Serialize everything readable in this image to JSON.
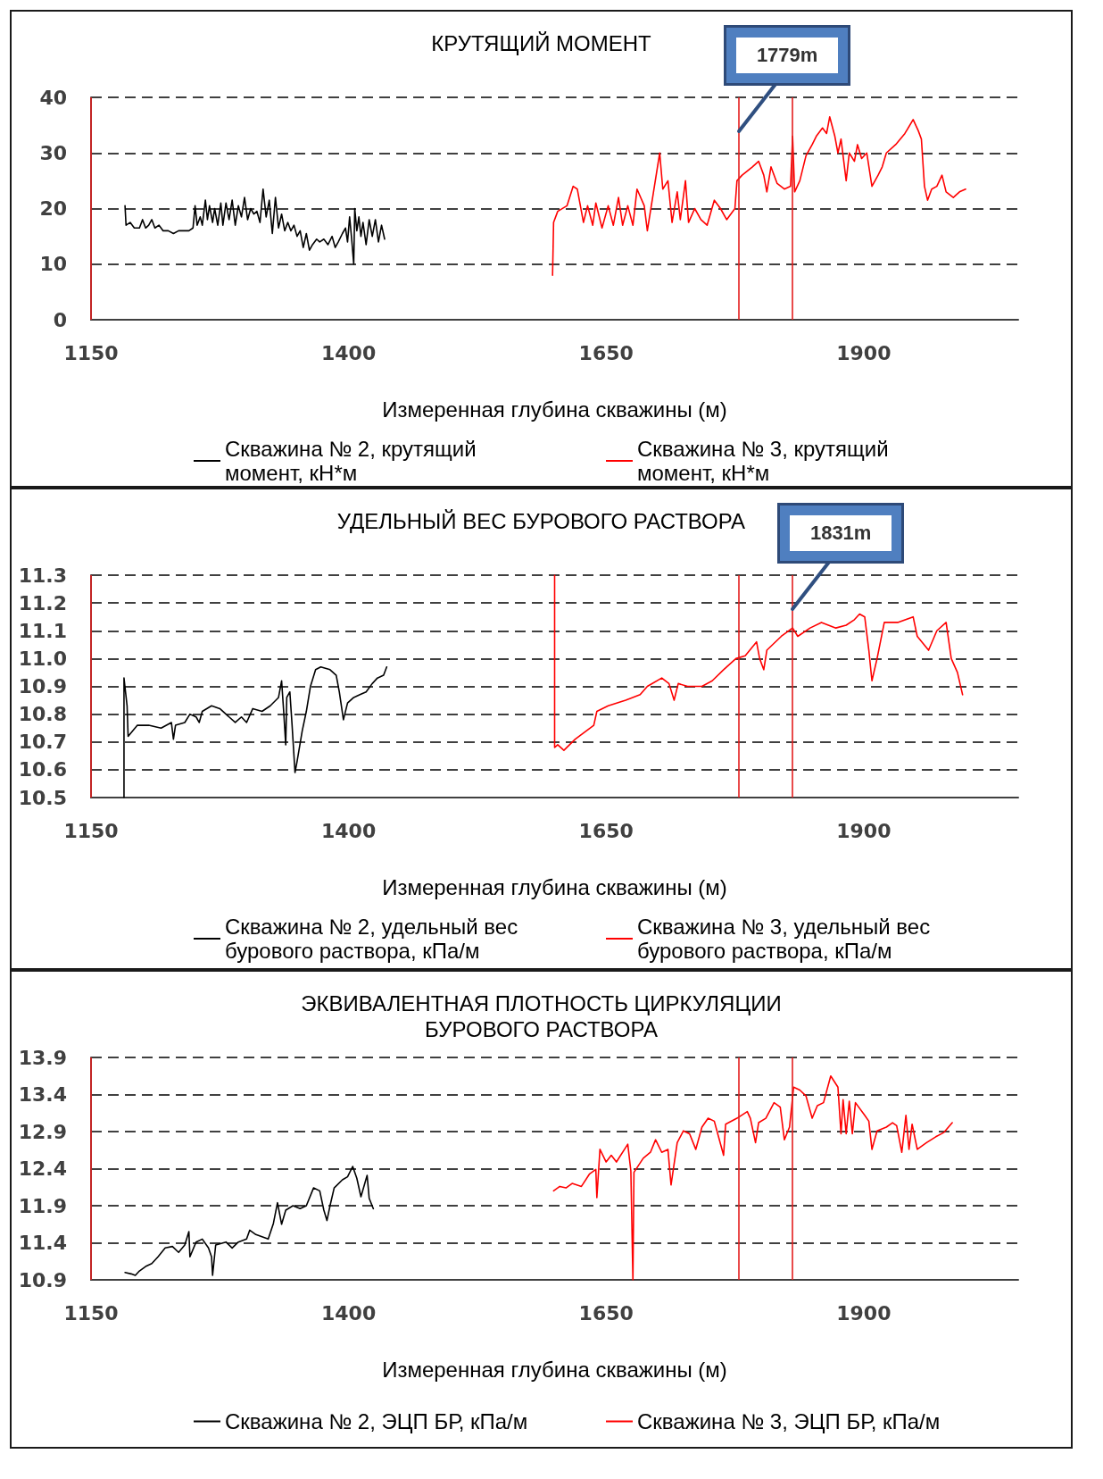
{
  "chart_data": [
    {
      "type": "line",
      "title": "КРУТЯЩИЙ МОМЕНТ",
      "xlabel": "Измеренная глубина скважины (м)",
      "xlim": [
        1150,
        2050
      ],
      "xticks": [
        1150,
        1400,
        1650,
        1900
      ],
      "ylim": [
        0,
        40
      ],
      "yticks": [
        0,
        10,
        20,
        30,
        40
      ],
      "grid": "y",
      "legend": "bottom",
      "marker": "none",
      "series": [
        {
          "name": "Скважина № 2, крутящий момент, кН*м",
          "color": "#000000",
          "x": [
            1183,
            1184,
            1188,
            1192,
            1197,
            1200,
            1203,
            1206,
            1209,
            1212,
            1216,
            1220,
            1225,
            1230,
            1235,
            1240,
            1245,
            1249,
            1251,
            1253,
            1256,
            1258,
            1261,
            1263,
            1265,
            1268,
            1270,
            1273,
            1276,
            1278,
            1281,
            1284,
            1287,
            1290,
            1293,
            1296,
            1299,
            1302,
            1305,
            1308,
            1311,
            1314,
            1317,
            1320,
            1323,
            1326,
            1329,
            1332,
            1335,
            1338,
            1341,
            1344,
            1347,
            1350,
            1353,
            1356,
            1359,
            1362,
            1365,
            1369,
            1372,
            1376,
            1380,
            1384,
            1387,
            1390,
            1394,
            1397,
            1399,
            1401,
            1403,
            1405,
            1406,
            1408,
            1410,
            1412,
            1414,
            1417,
            1420,
            1423,
            1426,
            1429,
            1432,
            1435
          ],
          "values": [
            20.5,
            17,
            17.5,
            16.5,
            16.5,
            18,
            16.5,
            17,
            18,
            16.5,
            17,
            16,
            16,
            15.5,
            16,
            16,
            16,
            16.5,
            20.5,
            17,
            18.5,
            17,
            21.5,
            18,
            20.5,
            17.5,
            20,
            17,
            21,
            17,
            21,
            18,
            21.5,
            17,
            20.5,
            18.5,
            22,
            18,
            20,
            19,
            19.5,
            17.5,
            23.5,
            18.5,
            21.5,
            15.5,
            22,
            16.5,
            19,
            16,
            17.5,
            16,
            17,
            15,
            16,
            13,
            15.5,
            12.5,
            13.5,
            14.5,
            14,
            14.5,
            13.5,
            15,
            13,
            14,
            15.5,
            16.5,
            14,
            18.5,
            14.5,
            10,
            20,
            16,
            18.5,
            15,
            17.5,
            13.5,
            18,
            15,
            18,
            14,
            17,
            14.5
          ]
        },
        {
          "name": "Скважина № 3, крутящий момент, кН*м",
          "color": "#ff0000",
          "x": [
            1598,
            1599,
            1603,
            1612,
            1618,
            1622,
            1628,
            1632,
            1637,
            1640,
            1646,
            1652,
            1657,
            1662,
            1666,
            1671,
            1676,
            1680,
            1687,
            1690,
            1696,
            1702,
            1705,
            1710,
            1714,
            1719,
            1722,
            1727,
            1730,
            1736,
            1742,
            1748,
            1755,
            1761,
            1767,
            1775,
            1777,
            1782,
            1792,
            1798,
            1803,
            1806,
            1810,
            1816,
            1823,
            1829,
            1831,
            1833,
            1838,
            1844,
            1850,
            1854,
            1860,
            1864,
            1867,
            1872,
            1875,
            1878,
            1883,
            1886,
            1891,
            1894,
            1898,
            1903,
            1908,
            1914,
            1918,
            1922,
            1931,
            1940,
            1948,
            1953,
            1956,
            1959,
            1962,
            1966,
            1971,
            1976,
            1980,
            1987,
            1993,
            1999
          ],
          "values": [
            8,
            17.5,
            19.5,
            20.5,
            24,
            23.5,
            17.5,
            20.5,
            17,
            21,
            16.5,
            20.5,
            17,
            22,
            17,
            20.5,
            17,
            23.5,
            20.5,
            16,
            23,
            30,
            23.5,
            25,
            17.5,
            23,
            18,
            25,
            17.5,
            20,
            18,
            17,
            21.5,
            20,
            18,
            20,
            25,
            26,
            27.5,
            28.5,
            26,
            23,
            27.5,
            24.5,
            23.5,
            24,
            33,
            23,
            25,
            29.5,
            31.5,
            33,
            34.5,
            33.5,
            36.5,
            33,
            30,
            32.5,
            25,
            30,
            28.5,
            31.5,
            29,
            30,
            24,
            26,
            27.5,
            30,
            31.5,
            33.5,
            36,
            34,
            32.5,
            24,
            21.5,
            23.5,
            24,
            26,
            23,
            22,
            23,
            23.5
          ]
        }
      ],
      "ref_lines": [
        {
          "axis": "x",
          "value": 1150,
          "color": "#e41e1e"
        },
        {
          "axis": "x",
          "value": 1779,
          "label": "1779m",
          "color": "#e41e1e"
        },
        {
          "axis": "x",
          "value": 1831,
          "color": "#e41e1e"
        }
      ]
    },
    {
      "type": "line",
      "title": "УДЕЛЬНЫЙ ВЕС БУРОВОГО РАСТВОРА",
      "xlabel": "Измеренная глубина скважины (м)",
      "xlim": [
        1150,
        2050
      ],
      "xticks": [
        1150,
        1400,
        1650,
        1900
      ],
      "ylim": [
        10.5,
        11.3
      ],
      "yticks": [
        10.5,
        10.6,
        10.7,
        10.8,
        10.9,
        {
          "value": 11,
          "label": "11.0"
        },
        11.1,
        11.2,
        11.3
      ],
      "grid": "y",
      "legend": "bottom",
      "marker": "none",
      "series": [
        {
          "name": "Скважина № 2, удельный вес бурового раствора, кПа/м",
          "color": "#000000",
          "x": [
            1182,
            1182,
            1185,
            1186,
            1195,
            1206,
            1218,
            1228,
            1230,
            1232,
            1241,
            1246,
            1252,
            1255,
            1258,
            1267,
            1275,
            1284,
            1290,
            1296,
            1301,
            1307,
            1316,
            1324,
            1332,
            1335,
            1337,
            1339,
            1340,
            1343,
            1345,
            1348,
            1350,
            1355,
            1359,
            1363,
            1368,
            1373,
            1382,
            1388,
            1391,
            1395,
            1399,
            1405,
            1411,
            1417,
            1423,
            1428,
            1434,
            1437
          ],
          "values": [
            10.5,
            10.93,
            10.83,
            10.72,
            10.76,
            10.76,
            10.75,
            10.77,
            10.71,
            10.76,
            10.77,
            10.8,
            10.79,
            10.77,
            10.81,
            10.83,
            10.82,
            10.79,
            10.77,
            10.79,
            10.77,
            10.82,
            10.81,
            10.83,
            10.86,
            10.92,
            10.81,
            10.69,
            10.86,
            10.88,
            10.77,
            10.59,
            10.63,
            10.74,
            10.81,
            10.9,
            10.96,
            10.97,
            10.96,
            10.94,
            10.88,
            10.78,
            10.84,
            10.86,
            10.87,
            10.88,
            10.91,
            10.93,
            10.94,
            10.97
          ]
        },
        {
          "name": "Скважина № 3, удельный вес бурового раствора, кПа/м",
          "color": "#ff0000",
          "x": [
            1600,
            1600,
            1603,
            1609,
            1620,
            1638,
            1641,
            1652,
            1669,
            1683,
            1690,
            1704,
            1711,
            1716,
            1720,
            1729,
            1743,
            1753,
            1764,
            1776,
            1785,
            1796,
            1799,
            1803,
            1806,
            1820,
            1831,
            1836,
            1848,
            1859,
            1873,
            1883,
            1891,
            1896,
            1901,
            1905,
            1908,
            1913,
            1920,
            1933,
            1948,
            1952,
            1963,
            1971,
            1980,
            1985,
            1991,
            1996
          ],
          "values": [
            11.3,
            10.68,
            10.69,
            10.67,
            10.71,
            10.76,
            10.81,
            10.83,
            10.85,
            10.87,
            10.9,
            10.93,
            10.91,
            10.85,
            10.91,
            10.9,
            10.9,
            10.92,
            10.96,
            11,
            11.01,
            11.06,
            11,
            10.96,
            11.03,
            11.08,
            11.11,
            11.08,
            11.11,
            11.13,
            11.11,
            11.12,
            11.14,
            11.16,
            11.15,
            11.03,
            10.92,
            11,
            11.13,
            11.13,
            11.15,
            11.08,
            11.03,
            11.1,
            11.13,
            11,
            10.95,
            10.87
          ]
        }
      ],
      "ref_lines": [
        {
          "axis": "x",
          "value": 1150,
          "color": "#e41e1e"
        },
        {
          "axis": "x",
          "value": 1779,
          "color": "#e41e1e"
        },
        {
          "axis": "x",
          "value": 1831,
          "label": "1831m",
          "color": "#e41e1e"
        }
      ]
    },
    {
      "type": "line",
      "title": "ЭКВИВАЛЕНТНАЯ ПЛОТНОСТЬ ЦИРКУЛЯЦИИ БУРОВОГО РАСТВОРА",
      "xlabel": "Измеренная глубина скважины (м)",
      "xlim": [
        1150,
        2050
      ],
      "xticks": [
        1150,
        1400,
        1650,
        1900
      ],
      "ylim": [
        10.9,
        13.9
      ],
      "yticks": [
        10.9,
        11.4,
        11.9,
        12.4,
        12.9,
        13.4,
        13.9
      ],
      "grid": "y",
      "legend": "bottom",
      "marker": "none",
      "series": [
        {
          "name": "Скважина № 2, ЭЦП БР, кПа/м",
          "color": "#000000",
          "x": [
            1183,
            1189,
            1193,
            1197,
            1203,
            1209,
            1215,
            1222,
            1229,
            1235,
            1241,
            1245,
            1246,
            1252,
            1258,
            1264,
            1267,
            1268,
            1271,
            1281,
            1287,
            1293,
            1301,
            1304,
            1310,
            1322,
            1327,
            1331,
            1335,
            1339,
            1346,
            1353,
            1359,
            1366,
            1372,
            1376,
            1379,
            1382,
            1386,
            1394,
            1399,
            1404,
            1408,
            1412,
            1418,
            1420,
            1424
          ],
          "values": [
            11,
            10.98,
            10.96,
            11.02,
            11.08,
            11.12,
            11.21,
            11.33,
            11.35,
            11.27,
            11.37,
            11.55,
            11.21,
            11.41,
            11.45,
            11.33,
            11.21,
            10.96,
            11.37,
            11.41,
            11.33,
            11.41,
            11.45,
            11.57,
            11.51,
            11.45,
            11.66,
            11.94,
            11.65,
            11.84,
            11.9,
            11.86,
            11.9,
            12.14,
            12.1,
            11.84,
            11.7,
            11.9,
            12.14,
            12.25,
            12.29,
            12.43,
            12.27,
            12.02,
            12.31,
            12,
            11.86
          ]
        },
        {
          "name": "Скважина № 3, ЭЦП БР, кПа/м",
          "color": "#ff0000",
          "x": [
            1599,
            1605,
            1611,
            1617,
            1626,
            1634,
            1640,
            1641,
            1644,
            1650,
            1655,
            1660,
            1671,
            1674,
            1676,
            1677,
            1686,
            1693,
            1698,
            1704,
            1710,
            1713,
            1719,
            1725,
            1731,
            1737,
            1743,
            1749,
            1755,
            1764,
            1766,
            1777,
            1787,
            1790,
            1795,
            1798,
            1805,
            1813,
            1819,
            1823,
            1828,
            1832,
            1838,
            1844,
            1850,
            1855,
            1861,
            1868,
            1875,
            1878,
            1880,
            1883,
            1886,
            1889,
            1892,
            1901,
            1905,
            1908,
            1913,
            1922,
            1928,
            1932,
            1937,
            1941,
            1944,
            1947,
            1952,
            1961,
            1970,
            1978,
            1986
          ],
          "values": [
            12.1,
            12.16,
            12.14,
            12.2,
            12.16,
            12.33,
            12.39,
            12.01,
            12.66,
            12.49,
            12.58,
            12.49,
            12.73,
            12.37,
            10.9,
            12.35,
            12.54,
            12.62,
            12.79,
            12.62,
            12.66,
            12.18,
            12.75,
            12.91,
            12.87,
            12.66,
            12.96,
            13.08,
            13.04,
            12.58,
            13,
            13.08,
            13.17,
            13.08,
            12.75,
            13.02,
            13.08,
            13.29,
            13.23,
            12.79,
            12.96,
            13.5,
            13.46,
            13.38,
            13.08,
            13.25,
            13.29,
            13.65,
            13.5,
            12.87,
            13.33,
            12.87,
            13.31,
            12.87,
            13.29,
            13.12,
            13.04,
            12.66,
            12.91,
            12.96,
            13.02,
            12.98,
            12.62,
            13.12,
            12.66,
            13,
            12.66,
            12.75,
            12.83,
            12.89,
            13.02
          ]
        }
      ],
      "ref_lines": [
        {
          "axis": "x",
          "value": 1150,
          "color": "#e41e1e"
        },
        {
          "axis": "x",
          "value": 1779,
          "color": "#e41e1e"
        },
        {
          "axis": "x",
          "value": 1831,
          "color": "#e41e1e"
        }
      ]
    }
  ]
}
